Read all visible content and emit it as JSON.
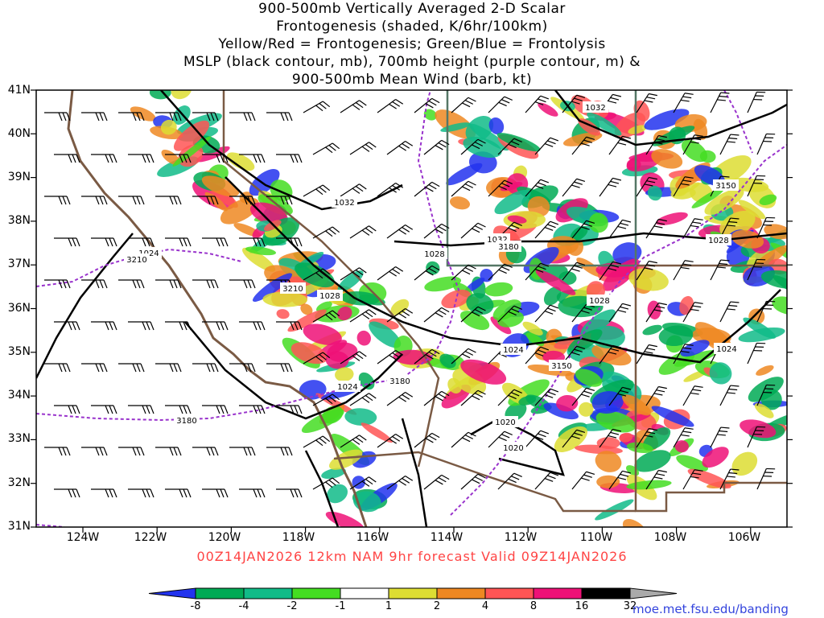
{
  "title": {
    "line1": "900-500mb Vertically Averaged 2-D Scalar",
    "line2": "Frontogenesis (shaded, K/6hr/100km)",
    "line3": "Yellow/Red = Frontogenesis;  Green/Blue = Frontolysis",
    "line4": "MSLP (black contour, mb), 700mb height (purple contour, m) &",
    "line5": "900-500mb Mean Wind (barb, kt)"
  },
  "lat_labels": [
    "41N",
    "40N",
    "39N",
    "38N",
    "37N",
    "36N",
    "35N",
    "34N",
    "33N",
    "32N",
    "31N"
  ],
  "lon_labels": [
    "124W",
    "122W",
    "120W",
    "118W",
    "116W",
    "114W",
    "112W",
    "110W",
    "108W",
    "106W"
  ],
  "valid_line": "00Z14JAN2026 12km NAM 9hr forecast Valid 09Z14JAN2026",
  "colorbar": {
    "labels": [
      "-8",
      "-4",
      "-2",
      "-1",
      "1",
      "2",
      "4",
      "8",
      "16",
      "32"
    ],
    "colors": [
      "#2233ee",
      "#00aa55",
      "#11bb88",
      "#44dd22",
      "#ffffff",
      "#dddd33",
      "#ee8822",
      "#ff5555",
      "#ee1177",
      "#000000"
    ]
  },
  "contour_labels": {
    "mslp": [
      "1032",
      "1032",
      "1032",
      "1028",
      "1028",
      "1028",
      "1028",
      "1024",
      "1024",
      "1024",
      "1024",
      "1020",
      "1020"
    ],
    "height": [
      "3210",
      "3210",
      "3180",
      "3180",
      "3180",
      "3150",
      "3150"
    ]
  },
  "credit": "moe.met.fsu.edu/banding"
}
